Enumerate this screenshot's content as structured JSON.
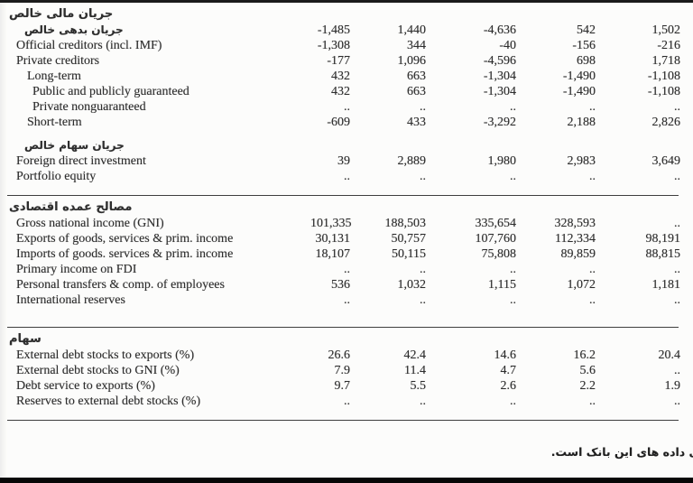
{
  "page": {
    "footer_note": "ی داده های این بانک است."
  },
  "table": {
    "sections": [
      {
        "title": "جریان مالی خالص",
        "rows": [
          {
            "type": "data",
            "lang": "fa",
            "indent": 2,
            "label": "جریان بدهی خالص",
            "values": [
              "-1,485",
              "1,440",
              "-4,636",
              "542",
              "1,502"
            ]
          },
          {
            "type": "data",
            "lang": "en",
            "indent": 1,
            "label": "Official creditors (incl. IMF)",
            "values": [
              "-1,308",
              "344",
              "-40",
              "-156",
              "-216"
            ]
          },
          {
            "type": "data",
            "lang": "en",
            "indent": 1,
            "label": "Private creditors",
            "values": [
              "-177",
              "1,096",
              "-4,596",
              "698",
              "1,718"
            ]
          },
          {
            "type": "data",
            "lang": "en",
            "indent": 3,
            "label": "Long-term",
            "values": [
              "432",
              "663",
              "-1,304",
              "-1,490",
              "-1,108"
            ]
          },
          {
            "type": "data",
            "lang": "en",
            "indent": 4,
            "label": "Public and publicly guaranteed",
            "values": [
              "432",
              "663",
              "-1,304",
              "-1,490",
              "-1,108"
            ]
          },
          {
            "type": "data",
            "lang": "en",
            "indent": 4,
            "label": "Private nonguaranteed",
            "values": [
              "..",
              "..",
              "..",
              "..",
              ".."
            ]
          },
          {
            "type": "data",
            "lang": "en",
            "indent": 3,
            "label": "Short-term",
            "values": [
              "-609",
              "433",
              "-3,292",
              "2,188",
              "2,826"
            ]
          },
          {
            "type": "spacer"
          },
          {
            "type": "data",
            "lang": "fa",
            "indent": 2,
            "label": "جریان سهام خالص"
          },
          {
            "type": "data",
            "lang": "en",
            "indent": 1,
            "label": "Foreign direct investment",
            "values": [
              "39",
              "2,889",
              "1,980",
              "2,983",
              "3,649"
            ]
          },
          {
            "type": "data",
            "lang": "en",
            "indent": 1,
            "label": "Portfolio equity",
            "values": [
              "..",
              "..",
              "..",
              "..",
              ".."
            ]
          }
        ]
      },
      {
        "title": "مصالح عمده اقتصادی",
        "rows": [
          {
            "type": "data",
            "lang": "en",
            "indent": 1,
            "label": "Gross national income (GNI)",
            "values": [
              "101,335",
              "188,503",
              "335,654",
              "328,593",
              ".."
            ]
          },
          {
            "type": "data",
            "lang": "en",
            "indent": 1,
            "label": "Exports of goods, services & prim. income",
            "values": [
              "30,131",
              "50,757",
              "107,760",
              "112,334",
              "98,191"
            ]
          },
          {
            "type": "data",
            "lang": "en",
            "indent": 1,
            "label": "Imports of goods. services & prim. income",
            "values": [
              "18,107",
              "50,115",
              "75,808",
              "89,859",
              "88,815"
            ]
          },
          {
            "type": "data",
            "lang": "en",
            "indent": 1,
            "label": "Primary income on FDI",
            "values": [
              "..",
              "..",
              "..",
              "..",
              ".."
            ]
          },
          {
            "type": "data",
            "lang": "en",
            "indent": 1,
            "label": "Personal transfers & comp. of employees",
            "values": [
              "536",
              "1,032",
              "1,115",
              "1,072",
              "1,181"
            ]
          },
          {
            "type": "data",
            "lang": "en",
            "indent": 1,
            "label": "International reserves",
            "values": [
              "..",
              "..",
              "..",
              "..",
              ".."
            ]
          },
          {
            "type": "spacer"
          }
        ]
      },
      {
        "title": "سهام",
        "rows": [
          {
            "type": "data",
            "lang": "en",
            "indent": 1,
            "label": "External debt stocks to exports (%)",
            "values": [
              "26.6",
              "42.4",
              "14.6",
              "16.2",
              "20.4"
            ]
          },
          {
            "type": "data",
            "lang": "en",
            "indent": 1,
            "label": "External debt stocks to GNI (%)",
            "values": [
              "7.9",
              "11.4",
              "4.7",
              "5.6",
              ".."
            ]
          },
          {
            "type": "data",
            "lang": "en",
            "indent": 1,
            "label": "Debt service to exports (%)",
            "values": [
              "9.7",
              "5.5",
              "2.6",
              "2.2",
              "1.9"
            ]
          },
          {
            "type": "data",
            "lang": "en",
            "indent": 1,
            "label": "Reserves to external debt stocks (%)",
            "values": [
              "..",
              "..",
              "..",
              "..",
              ".."
            ]
          }
        ]
      }
    ]
  }
}
